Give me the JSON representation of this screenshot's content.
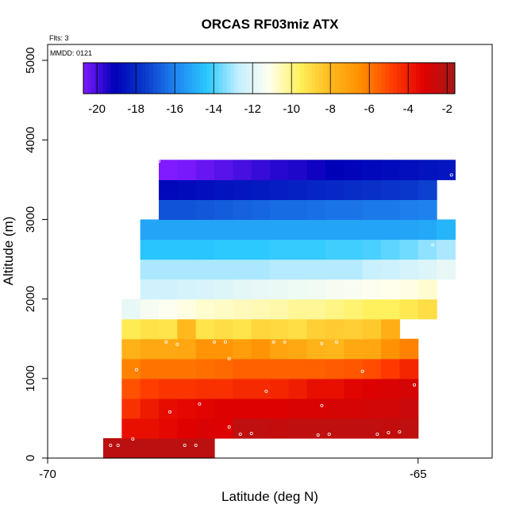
{
  "chart_data": {
    "type": "heatmap",
    "title": "ORCAS RF03miz ATX",
    "flights_label": "Flts: 3",
    "mmdd_label": "MMDD: 0121",
    "xlabel": "Latitude (deg N)",
    "ylabel": "Altitude (m)",
    "xlim": [
      -70,
      -64
    ],
    "ylim": [
      0,
      5200
    ],
    "x_ticks": [
      -70,
      -65
    ],
    "y_ticks": [
      0,
      1000,
      2000,
      3000,
      4000,
      5000
    ],
    "colorbar": {
      "min": -20.7,
      "max": -1.6,
      "ticks": [
        -20,
        -18,
        -16,
        -14,
        -12,
        -10,
        -8,
        -6,
        -4,
        -2
      ],
      "stops": [
        "#7f1bff",
        "#0000b8",
        "#0a3acc",
        "#1f86f0",
        "#29c8ff",
        "#c4eeff",
        "#fffff0",
        "#fff15a",
        "#ffb81c",
        "#ff8c00",
        "#ff3c00",
        "#e00000",
        "#a51a1a"
      ]
    },
    "grid": {
      "lat_step": 0.25,
      "alt_step": 250,
      "rows": [
        {
          "alt": 0,
          "lat_start": -69.25,
          "values": [
            -2.2,
            -2.2,
            -2.2,
            -2.2,
            -2.2,
            -2.2
          ]
        },
        {
          "alt": 250,
          "lat_start": -69.0,
          "values": [
            -3.6,
            -3.6,
            -3.4,
            -3.2,
            -3.0,
            -3.1,
            -2.3,
            -2.3,
            -2.4,
            -2.3,
            -2.3,
            -2.3,
            -2.3,
            -2.3,
            -2.4,
            -2.3
          ]
        },
        {
          "alt": 500,
          "lat_start": -69.0,
          "values": [
            -4.5,
            -3.9,
            -3.5,
            -3.4,
            -3.3,
            -3.1,
            -3.1,
            -3.1,
            -3.1,
            -3.0,
            -3.0,
            -2.9,
            -2.9,
            -2.8,
            -2.8,
            -2.6
          ]
        },
        {
          "alt": 750,
          "lat_start": -69.0,
          "values": [
            -5.2,
            -4.8,
            -4.6,
            -4.6,
            -4.5,
            -4.5,
            -4.3,
            -4.3,
            -4.2,
            -4.0,
            -3.6,
            -3.6,
            -3.3,
            -3.1,
            -3.0,
            -2.9
          ]
        },
        {
          "alt": 1000,
          "lat_start": -69.0,
          "values": [
            -6.2,
            -5.9,
            -5.9,
            -5.9,
            -5.8,
            -5.7,
            -5.5,
            -5.5,
            -5.5,
            -5.5,
            -5.5,
            -5.4,
            -5.3,
            -5.1,
            -4.7,
            -4.2
          ]
        },
        {
          "alt": 1250,
          "lat_start": -69.0,
          "values": [
            -7.7,
            -7.4,
            -7.4,
            -7.3,
            -6.7,
            -6.7,
            -7.0,
            -6.7,
            -7.2,
            -7.4,
            -7.8,
            -7.9,
            -7.4,
            -7.3,
            -6.6,
            -6.2
          ]
        },
        {
          "alt": 1500,
          "lat_start": -69.0,
          "values": [
            -9.4,
            -9.1,
            -9.2,
            -8.0,
            -9.2,
            -9.0,
            -9.2,
            -8.8,
            -8.9,
            -9.0,
            -8.6,
            -8.5,
            -8.6,
            -8.4,
            -7.6
          ]
        },
        {
          "alt": 1750,
          "lat_start": -69.0,
          "values": [
            -11.8,
            -11.4,
            -11.2,
            -11.0,
            -10.8,
            -10.7,
            -10.6,
            -10.5,
            -10.4,
            -10.2,
            -10.2,
            -10.0,
            -9.8,
            -9.6,
            -9.6,
            -9.3,
            -9.0
          ]
        },
        {
          "alt": 2000,
          "lat_start": -68.75,
          "values": [
            -12.4,
            -12.4,
            -12.3,
            -12.2,
            -12.1,
            -11.9,
            -11.8,
            -11.7,
            -11.6,
            -11.5,
            -11.4,
            -11.3,
            -11.2,
            -11.1,
            -11.0,
            -10.8
          ]
        },
        {
          "alt": 2250,
          "lat_start": -68.75,
          "values": [
            -13.0,
            -13.0,
            -13.0,
            -13.0,
            -13.0,
            -13.0,
            -13.0,
            -12.9,
            -12.9,
            -12.9,
            -12.9,
            -12.9,
            -12.6,
            -12.5,
            -12.3,
            -12.1,
            -11.8
          ]
        },
        {
          "alt": 2500,
          "lat_start": -68.75,
          "values": [
            -14.4,
            -14.4,
            -14.4,
            -14.4,
            -14.3,
            -14.3,
            -14.3,
            -14.2,
            -14.2,
            -14.2,
            -14.1,
            -14.1,
            -14.0,
            -13.8,
            -13.6,
            -13.3,
            -13.0
          ]
        },
        {
          "alt": 2750,
          "lat_start": -68.75,
          "values": [
            -15.2,
            -15.2,
            -15.2,
            -15.2,
            -15.2,
            -15.2,
            -15.2,
            -15.2,
            -15.2,
            -15.2,
            -15.2,
            -15.2,
            -15.2,
            -15.2,
            -15.2,
            -15.1,
            -14.8
          ]
        },
        {
          "alt": 3000,
          "lat_start": -68.5,
          "values": [
            -17.0,
            -17.0,
            -16.9,
            -16.8,
            -16.7,
            -16.6,
            -16.5,
            -16.5,
            -16.4,
            -16.3,
            -16.3,
            -16.2,
            -16.2,
            -16.1,
            -16.0
          ]
        },
        {
          "alt": 3250,
          "lat_start": -68.5,
          "values": [
            -18.9,
            -18.8,
            -18.7,
            -18.6,
            -18.5,
            -18.4,
            -18.3,
            -18.2,
            -18.1,
            -18.0,
            -17.9,
            -17.8,
            -17.7,
            -17.6,
            -17.4
          ]
        },
        {
          "alt": 3500,
          "lat_start": -68.5,
          "values": [
            -20.7,
            -20.6,
            -20.4,
            -20.2,
            -20.0,
            -19.8,
            -19.6,
            -19.5,
            -19.3,
            -19.1,
            -19.0,
            -18.9,
            -18.8,
            -18.7,
            -18.6,
            -18.5
          ]
        }
      ]
    },
    "flight_points": [
      [
        -69.15,
        160
      ],
      [
        -69.05,
        160
      ],
      [
        -68.85,
        240
      ],
      [
        -68.15,
        160
      ],
      [
        -68.0,
        160
      ],
      [
        -69.1,
        390
      ],
      [
        -67.55,
        390
      ],
      [
        -67.4,
        300
      ],
      [
        -67.25,
        310
      ],
      [
        -66.35,
        290
      ],
      [
        -66.2,
        300
      ],
      [
        -65.55,
        300
      ],
      [
        -65.4,
        320
      ],
      [
        -65.25,
        330
      ],
      [
        -68.35,
        580
      ],
      [
        -67.95,
        680
      ],
      [
        -67.05,
        840
      ],
      [
        -66.3,
        660
      ],
      [
        -65.05,
        920
      ],
      [
        -69.05,
        1080
      ],
      [
        -68.8,
        1110
      ],
      [
        -67.55,
        1250
      ],
      [
        -68.4,
        1460
      ],
      [
        -68.25,
        1430
      ],
      [
        -67.75,
        1460
      ],
      [
        -67.6,
        1460
      ],
      [
        -66.95,
        1460
      ],
      [
        -66.8,
        1460
      ],
      [
        -66.3,
        1440
      ],
      [
        -66.1,
        1460
      ],
      [
        -65.75,
        1090
      ],
      [
        -68.8,
        2850
      ],
      [
        -68.5,
        3730
      ],
      [
        -64.8,
        2680
      ],
      [
        -64.55,
        3560
      ]
    ]
  }
}
